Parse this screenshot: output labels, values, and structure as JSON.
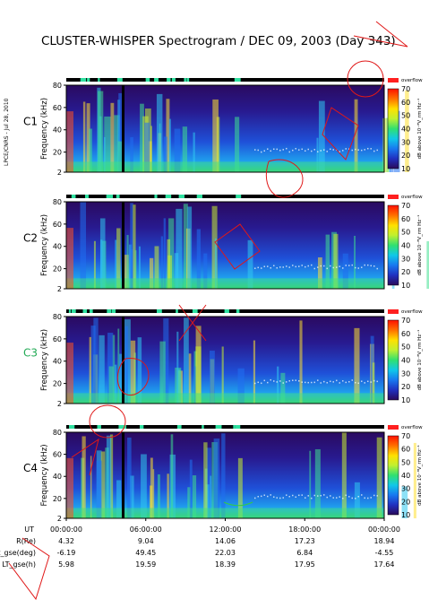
{
  "title": "CLUSTER-WHISPER Spectrogram / DEC 09, 2003 (Day 343)",
  "side_note": "LPCE/CNRS - Jul 28, 2010",
  "panel_labels": [
    "C1",
    "C2",
    "C3",
    "C4"
  ],
  "panel_label_colors": [
    "#000000",
    "#000000",
    "#22aa55",
    "#000000"
  ],
  "y_axis_label": "Frequency (kHz)",
  "y_ticks": [
    "80",
    "60",
    "40",
    "20",
    "2"
  ],
  "colorbar_top": "overflow",
  "colorbar_ticks": [
    "70",
    "60",
    "50",
    "40",
    "30",
    "20",
    "10"
  ],
  "colorbar_label": "dB above 10⁻⁸V_rm Hz⁻¹",
  "colorscale": [
    "#2a0a5a",
    "#2030c0",
    "#1878f0",
    "#10c8e8",
    "#30e070",
    "#c0f030",
    "#ffe000",
    "#ff7000",
    "#ff1000"
  ],
  "x_ticks": [
    "00:00:00",
    "06:00:00",
    "12:00:00",
    "18:00:00",
    "00:00:00"
  ],
  "ephemeris": {
    "labels": [
      "UT",
      "R(Re)",
      "Lat_gse(deg)",
      "LT_gse(h)"
    ],
    "rows": [
      [
        "4.32",
        "9.04",
        "14.06",
        "17.23",
        "18.94"
      ],
      [
        "-6.19",
        "49.45",
        "22.03",
        "6.84",
        "-4.55"
      ],
      [
        "5.98",
        "19.59",
        "18.39",
        "17.95",
        "17.64"
      ]
    ]
  },
  "chart_data": {
    "type": "heatmap",
    "title": "CLUSTER-WHISPER Spectrogram / DEC 09, 2003 (Day 343)",
    "xlabel": "",
    "ylabel": "Frequency (kHz)",
    "ylim": [
      2,
      80
    ],
    "x_range": [
      "00:00:00",
      "00:00:00"
    ],
    "colorbar_range": [
      10,
      70
    ],
    "panels": [
      "C1",
      "C2",
      "C3",
      "C4"
    ]
  }
}
